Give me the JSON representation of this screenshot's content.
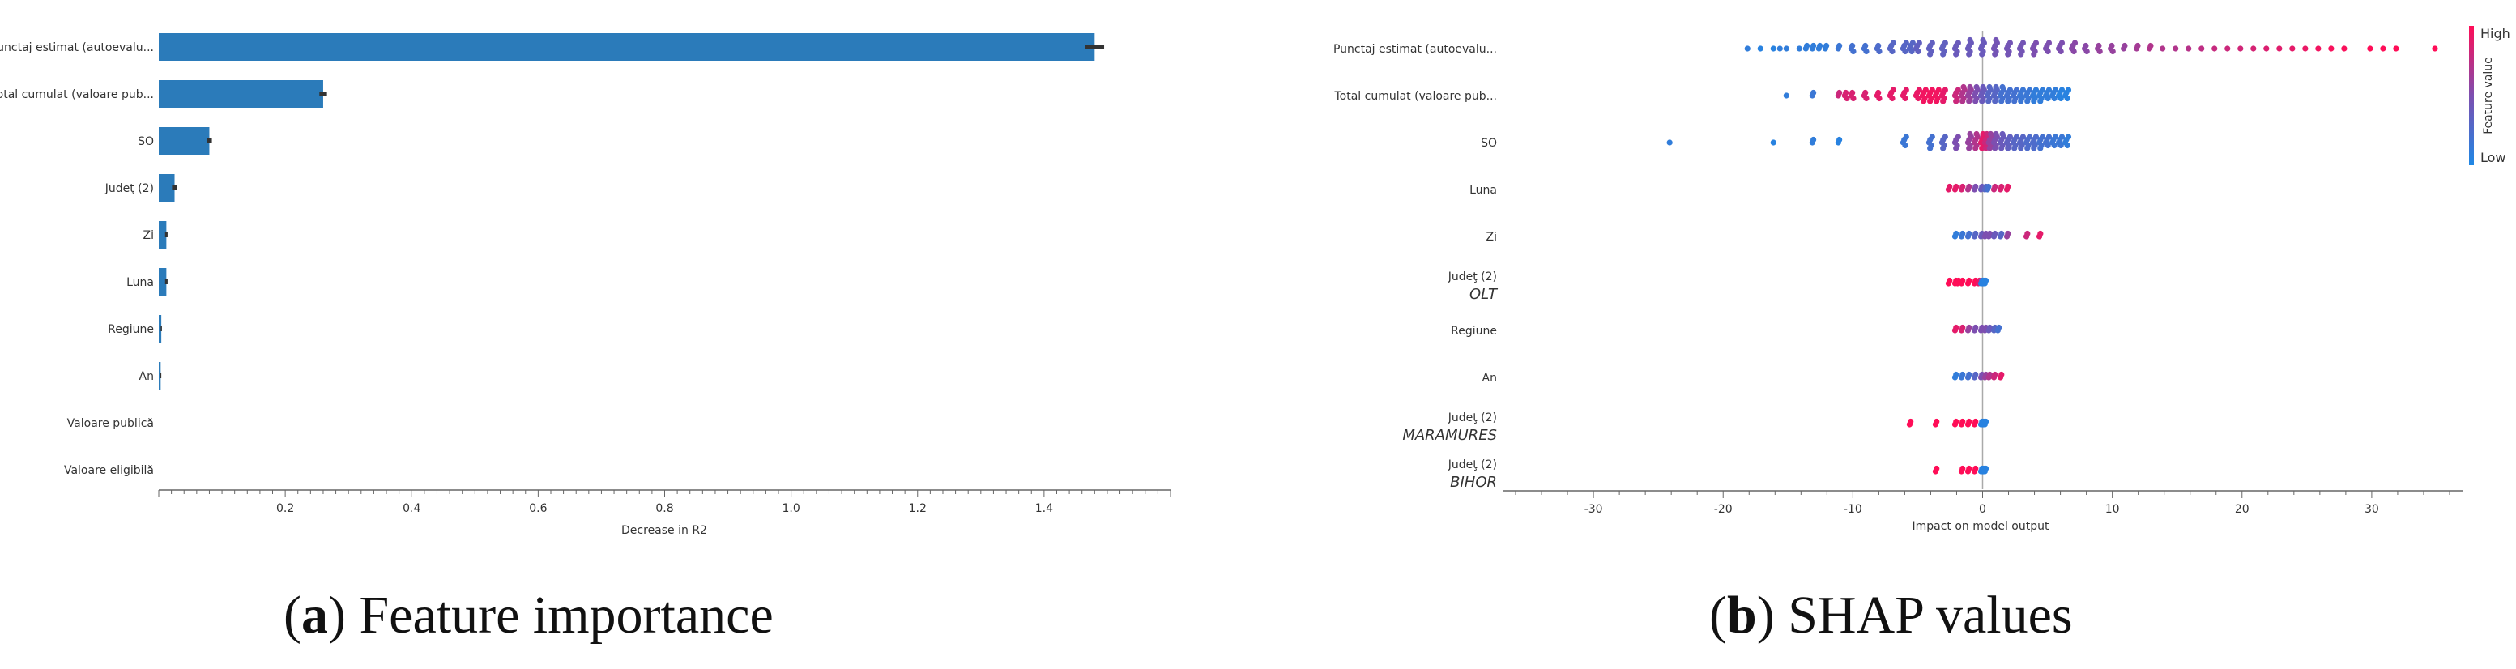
{
  "chart_data": [
    {
      "type": "bar",
      "orientation": "horizontal",
      "caption_letter": "a",
      "caption_text": "Feature importance",
      "xlabel": "Decrease in R2",
      "xlim": [
        0,
        1.6
      ],
      "xticks": [
        "0.2",
        "0.4",
        "0.6",
        "0.8",
        "1.0",
        "1.2",
        "1.4"
      ],
      "grid": false,
      "bar_color": "#2b7bba",
      "errorbar_color": "#333333",
      "categories": [
        "Punctaj estimat (autoevalu...",
        "Total cumulat (valoare pub...",
        "SO",
        "Judeţ (2)",
        "Zi",
        "Luna",
        "Regiune",
        "An",
        "Valoare publică",
        "Valoare eligibilă"
      ],
      "values": [
        1.48,
        0.26,
        0.08,
        0.025,
        0.012,
        0.012,
        0.004,
        0.003,
        0,
        0
      ],
      "errors": [
        0.015,
        0.006,
        0.004,
        0.004,
        0.002,
        0.002,
        0.001,
        0.001,
        0,
        0
      ]
    },
    {
      "type": "scatter",
      "subtype": "beeswarm",
      "caption_letter": "b",
      "caption_text": "SHAP values",
      "xlabel": "Impact on model output",
      "xlim": [
        -37,
        37
      ],
      "xticks": [
        "-30",
        "-20",
        "-10",
        "0",
        "10",
        "20",
        "30"
      ],
      "grid": false,
      "colorbar": {
        "title": "Feature value",
        "high_label": "High",
        "low_label": "Low",
        "low_color": "#1e88e5",
        "high_color": "#ff0d57"
      },
      "rows": [
        {
          "label": "Punctaj estimat (autoevalu...",
          "sublabel": "",
          "points": [
            [
              -18,
              0.1
            ],
            [
              -17,
              0.05
            ],
            [
              -16,
              0.05
            ],
            [
              -15.5,
              0.1
            ],
            [
              -15,
              0.1
            ],
            [
              -14,
              0.1
            ],
            [
              -13.5,
              0.1
            ],
            [
              -13,
              0.1
            ],
            [
              -12.5,
              0.1
            ],
            [
              -12,
              0.1
            ],
            [
              -11,
              0.15
            ],
            [
              -10,
              0.2
            ],
            [
              -9,
              0.2
            ],
            [
              -8,
              0.25
            ],
            [
              -7,
              0.3
            ],
            [
              -6,
              0.3
            ],
            [
              -5.5,
              0.3
            ],
            [
              -5,
              0.35
            ],
            [
              -4,
              0.35
            ],
            [
              -3,
              0.35
            ],
            [
              -2,
              0.4
            ],
            [
              -1,
              0.4
            ],
            [
              0,
              0.4
            ],
            [
              1,
              0.45
            ],
            [
              2,
              0.45
            ],
            [
              3,
              0.45
            ],
            [
              4,
              0.5
            ],
            [
              5,
              0.5
            ],
            [
              6,
              0.5
            ],
            [
              7,
              0.55
            ],
            [
              8,
              0.55
            ],
            [
              9,
              0.6
            ],
            [
              10,
              0.6
            ],
            [
              11,
              0.6
            ],
            [
              12,
              0.65
            ],
            [
              13,
              0.7
            ],
            [
              14,
              0.7
            ],
            [
              15,
              0.7
            ],
            [
              16,
              0.72
            ],
            [
              17,
              0.75
            ],
            [
              18,
              0.78
            ],
            [
              19,
              0.8
            ],
            [
              20,
              0.82
            ],
            [
              21,
              0.84
            ],
            [
              22,
              0.86
            ],
            [
              23,
              0.88
            ],
            [
              24,
              0.9
            ],
            [
              25,
              0.92
            ],
            [
              26,
              0.95
            ],
            [
              27,
              0.97
            ],
            [
              28,
              0.98
            ],
            [
              30,
              1
            ],
            [
              31,
              1
            ],
            [
              32,
              1
            ],
            [
              35,
              1
            ]
          ]
        },
        {
          "label": "Total cumulat (valoare pub...",
          "sublabel": "",
          "points": [
            [
              -15,
              0.1
            ],
            [
              -13,
              0.15
            ],
            [
              -11,
              0.8
            ],
            [
              -10.5,
              0.85
            ],
            [
              -10,
              0.85
            ],
            [
              -9,
              0.85
            ],
            [
              -8,
              0.9
            ],
            [
              -7,
              0.9
            ],
            [
              -6,
              0.9
            ],
            [
              -5,
              0.92
            ],
            [
              -4.5,
              0.95
            ],
            [
              -4,
              0.95
            ],
            [
              -3.5,
              0.95
            ],
            [
              -3,
              0.9
            ],
            [
              -2,
              0.8
            ],
            [
              -1.5,
              0.7
            ],
            [
              -1,
              0.6
            ],
            [
              -0.5,
              0.5
            ],
            [
              0,
              0.4
            ],
            [
              0.5,
              0.3
            ],
            [
              1,
              0.3
            ],
            [
              1.5,
              0.2
            ],
            [
              2,
              0.2
            ],
            [
              2.5,
              0.2
            ],
            [
              3,
              0.15
            ],
            [
              3.5,
              0.15
            ],
            [
              4,
              0.1
            ],
            [
              4.5,
              0.1
            ],
            [
              5,
              0.1
            ],
            [
              5.5,
              0.1
            ],
            [
              6,
              0.05
            ],
            [
              6.5,
              0.05
            ]
          ]
        },
        {
          "label": "SO",
          "sublabel": "",
          "points": [
            [
              -24,
              0.1
            ],
            [
              -16,
              0.05
            ],
            [
              -13,
              0.1
            ],
            [
              -11,
              0.05
            ],
            [
              -6,
              0.15
            ],
            [
              -4,
              0.2
            ],
            [
              -3,
              0.3
            ],
            [
              -2,
              0.5
            ],
            [
              -1,
              0.6
            ],
            [
              -0.5,
              0.7
            ],
            [
              0,
              0.9
            ],
            [
              0.3,
              0.8
            ],
            [
              0.6,
              0.6
            ],
            [
              1,
              0.5
            ],
            [
              1.5,
              0.4
            ],
            [
              2,
              0.35
            ],
            [
              2.5,
              0.3
            ],
            [
              3,
              0.3
            ],
            [
              3.5,
              0.25
            ],
            [
              4,
              0.25
            ],
            [
              4.5,
              0.2
            ],
            [
              5,
              0.2
            ],
            [
              5.5,
              0.15
            ],
            [
              6,
              0.15
            ],
            [
              6.5,
              0.1
            ]
          ]
        },
        {
          "label": "Luna",
          "sublabel": "",
          "points": [
            [
              -2.5,
              0.9
            ],
            [
              -2,
              0.9
            ],
            [
              -1.5,
              0.85
            ],
            [
              -1,
              0.7
            ],
            [
              -0.5,
              0.5
            ],
            [
              0,
              0.4
            ],
            [
              0.3,
              0.3
            ],
            [
              0.5,
              0.2
            ],
            [
              1,
              0.8
            ],
            [
              1.5,
              0.85
            ],
            [
              2,
              0.9
            ]
          ]
        },
        {
          "label": "Zi",
          "sublabel": "",
          "points": [
            [
              -2,
              0.1
            ],
            [
              -1.5,
              0.15
            ],
            [
              -1,
              0.2
            ],
            [
              -0.5,
              0.3
            ],
            [
              0,
              0.4
            ],
            [
              0.3,
              0.5
            ],
            [
              0.6,
              0.5
            ],
            [
              1,
              0.4
            ],
            [
              1.5,
              0.3
            ],
            [
              2,
              0.6
            ],
            [
              3.5,
              0.8
            ],
            [
              4.5,
              0.9
            ]
          ]
        },
        {
          "label": "Judeţ (2)",
          "sublabel": "OLT",
          "points": [
            [
              -2.5,
              1
            ],
            [
              -2,
              1
            ],
            [
              -1.8,
              1
            ],
            [
              -1.5,
              1
            ],
            [
              -1,
              1
            ],
            [
              -0.5,
              1
            ],
            [
              -0.2,
              0.9
            ],
            [
              0,
              0.05
            ],
            [
              0.1,
              0.05
            ],
            [
              0.2,
              0.05
            ],
            [
              0.3,
              0.05
            ]
          ]
        },
        {
          "label": "Regiune",
          "sublabel": "",
          "points": [
            [
              -2,
              0.9
            ],
            [
              -1.5,
              0.85
            ],
            [
              -1,
              0.6
            ],
            [
              -0.5,
              0.5
            ],
            [
              0,
              0.5
            ],
            [
              0.3,
              0.5
            ],
            [
              0.6,
              0.4
            ],
            [
              1,
              0.3
            ],
            [
              1.3,
              0.2
            ]
          ]
        },
        {
          "label": "An",
          "sublabel": "",
          "points": [
            [
              -2,
              0.1
            ],
            [
              -1.5,
              0.15
            ],
            [
              -1,
              0.2
            ],
            [
              -0.5,
              0.3
            ],
            [
              0,
              0.5
            ],
            [
              0.3,
              0.6
            ],
            [
              0.6,
              0.7
            ],
            [
              1,
              0.8
            ],
            [
              1.5,
              0.9
            ]
          ]
        },
        {
          "label": "Judeţ (2)",
          "sublabel": "MARAMURES",
          "points": [
            [
              -5.5,
              1
            ],
            [
              -3.5,
              1
            ],
            [
              -2,
              1
            ],
            [
              -1.5,
              1
            ],
            [
              -1,
              1
            ],
            [
              -0.5,
              1
            ],
            [
              0,
              0.05
            ],
            [
              0.1,
              0.05
            ],
            [
              0.2,
              0.05
            ],
            [
              0.3,
              0.05
            ]
          ]
        },
        {
          "label": "Judeţ (2)",
          "sublabel": "BIHOR",
          "points": [
            [
              -3.5,
              1
            ],
            [
              -1.5,
              1
            ],
            [
              -1,
              1
            ],
            [
              -0.5,
              1
            ],
            [
              0,
              0.05
            ],
            [
              0.1,
              0.05
            ],
            [
              0.2,
              0.05
            ],
            [
              0.3,
              0.05
            ]
          ]
        }
      ]
    }
  ]
}
